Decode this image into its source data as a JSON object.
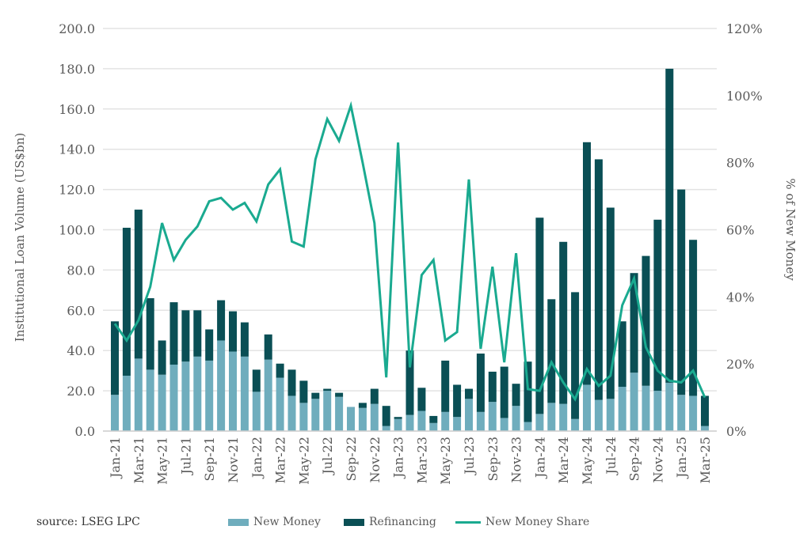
{
  "chart_data": {
    "type": "bar",
    "stacked": true,
    "ylabel": "Institutional Loan Volume (US$bn)",
    "y2label": "% of New Money",
    "ylim": [
      0,
      200
    ],
    "y2lim": [
      0,
      120
    ],
    "yticks": [
      "0.0",
      "20.0",
      "40.0",
      "60.0",
      "80.0",
      "100.0",
      "120.0",
      "140.0",
      "160.0",
      "180.0",
      "200.0"
    ],
    "y2ticks": [
      "0%",
      "20%",
      "40%",
      "60%",
      "80%",
      "100%",
      "120%"
    ],
    "grid": true,
    "legend_position": "bottom",
    "source": "source: LSEG LPC",
    "categories": [
      "Jan-21",
      "Feb-21",
      "Mar-21",
      "Apr-21",
      "May-21",
      "Jun-21",
      "Jul-21",
      "Aug-21",
      "Sep-21",
      "Oct-21",
      "Nov-21",
      "Dec-21",
      "Jan-22",
      "Feb-22",
      "Mar-22",
      "Apr-22",
      "May-22",
      "Jun-22",
      "Jul-22",
      "Aug-22",
      "Sep-22",
      "Oct-22",
      "Nov-22",
      "Dec-22",
      "Jan-23",
      "Feb-23",
      "Mar-23",
      "Apr-23",
      "May-23",
      "Jun-23",
      "Jul-23",
      "Aug-23",
      "Sep-23",
      "Oct-23",
      "Nov-23",
      "Dec-23",
      "Jan-24",
      "Feb-24",
      "Mar-24",
      "Apr-24",
      "May-24",
      "Jun-24",
      "Jul-24",
      "Aug-24",
      "Sep-24",
      "Oct-24",
      "Nov-24",
      "Dec-24",
      "Jan-25",
      "Feb-25",
      "Mar-25"
    ],
    "series": [
      {
        "name": "New Money",
        "color": "#6fadbd",
        "values": [
          18,
          27.5,
          36,
          30.5,
          28,
          33,
          34.5,
          37,
          35,
          45,
          39.5,
          37,
          19.5,
          35.5,
          26.5,
          17.5,
          14,
          16,
          20,
          17,
          12,
          11.5,
          13.5,
          2.5,
          6,
          8,
          10,
          4,
          9.5,
          7,
          16,
          9.5,
          14.5,
          6.5,
          12.5,
          4.5,
          8.5,
          14,
          13.5,
          6,
          23,
          15.5,
          16,
          22,
          29,
          22.5,
          20,
          24,
          18,
          17.5,
          2.5
        ]
      },
      {
        "name": "Refinancing",
        "color": "#0a4f55",
        "values": [
          36.5,
          73.5,
          74,
          35.5,
          17,
          31,
          25.5,
          23,
          15.5,
          20,
          20,
          17,
          11,
          12.5,
          7,
          13,
          11,
          3,
          1,
          2,
          0,
          2.5,
          7.5,
          10,
          1,
          32,
          11.5,
          3.5,
          25.5,
          16,
          5,
          29,
          15,
          25.5,
          11,
          30,
          97.5,
          51.5,
          80.5,
          63,
          120.5,
          119.5,
          95,
          32.5,
          49.5,
          64.5,
          85,
          156,
          102,
          77.5,
          15
        ]
      },
      {
        "name": "New Money Share",
        "color": "#1aaa90",
        "axis": "right",
        "values": [
          32,
          27,
          33,
          43,
          62,
          51,
          57,
          61,
          68.5,
          69.5,
          66,
          68,
          62.5,
          73.5,
          78,
          56.5,
          55,
          81,
          93,
          86.5,
          97,
          80,
          62,
          16,
          86,
          19,
          46.5,
          51,
          27,
          29.5,
          75,
          24.5,
          49,
          20.5,
          53,
          12.5,
          12,
          20.5,
          14.5,
          9.5,
          18.5,
          13.5,
          16.5,
          37.5,
          45.5,
          25,
          18,
          15,
          14.5,
          18,
          10
        ]
      }
    ]
  }
}
